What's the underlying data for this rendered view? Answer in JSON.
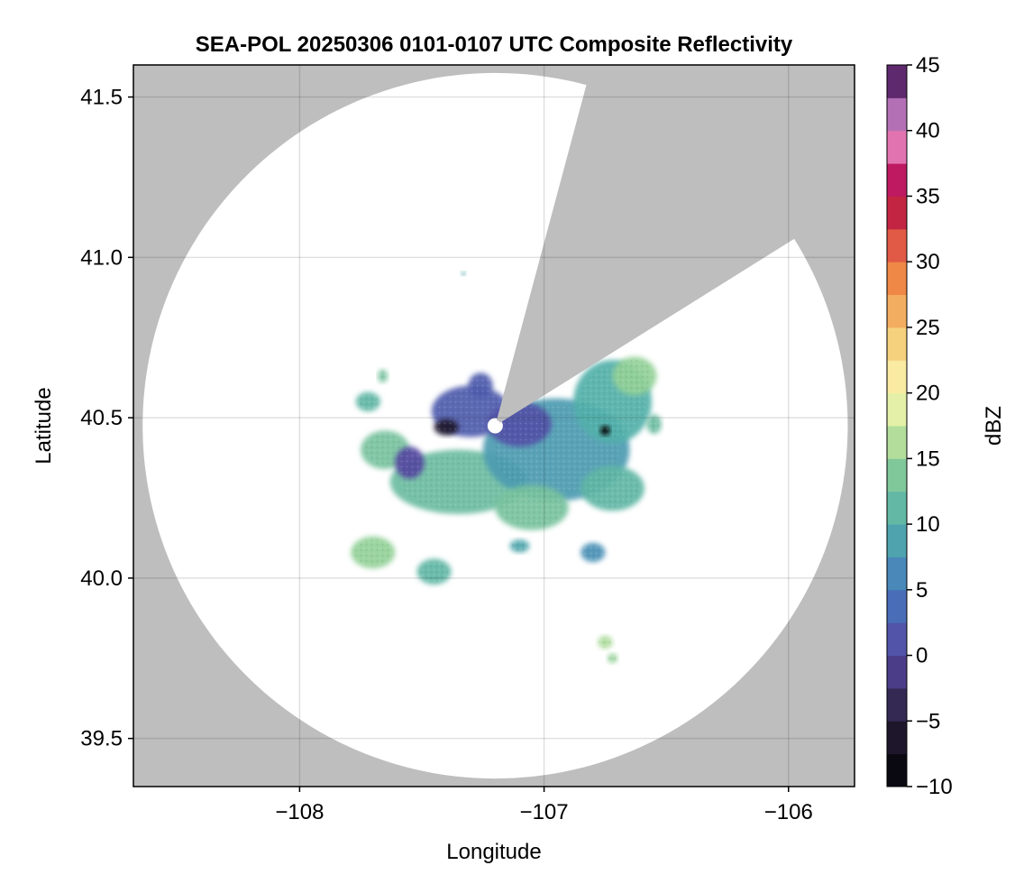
{
  "chart_data": {
    "type": "heatmap",
    "title": "SEA-POL 20250306 0101-0107 UTC Composite Reflectivity",
    "xlabel": "Longitude",
    "ylabel": "Latitude",
    "xlim": [
      -108.68,
      -105.73
    ],
    "ylim": [
      39.35,
      41.6
    ],
    "xticks": [
      -108,
      -107,
      -106
    ],
    "xtick_labels": [
      "−108",
      "−107",
      "−106"
    ],
    "yticks": [
      39.5,
      40.0,
      40.5,
      41.0,
      41.5
    ],
    "ytick_labels": [
      "39.5",
      "40.0",
      "40.5",
      "41.0",
      "41.5"
    ],
    "grid": true,
    "background_color": "#bebebe",
    "coverage_color": "#ffffff",
    "radar": {
      "center_lon": -107.2,
      "center_lat": 40.475,
      "range_lat_deg": 1.1,
      "blocked_sector_deg": [
        15,
        58
      ],
      "inner_blank_radius_lat_deg": 0.03
    },
    "colorbar": {
      "label": "dBZ",
      "range": [
        -10,
        45
      ],
      "step": 2.5,
      "ticks": [
        -10,
        -5,
        0,
        5,
        10,
        15,
        20,
        25,
        30,
        35,
        40,
        45
      ],
      "tick_labels": [
        "−10",
        "−5",
        "0",
        "5",
        "10",
        "15",
        "20",
        "25",
        "30",
        "35",
        "40",
        "45"
      ],
      "colormap": "spectral_r-like"
    },
    "echoes": [
      {
        "lon": -107.35,
        "lat": 40.3,
        "rx": 0.28,
        "ry": 0.1,
        "dbz": 12
      },
      {
        "lon": -106.95,
        "lat": 40.4,
        "rx": 0.3,
        "ry": 0.16,
        "dbz": 8
      },
      {
        "lon": -106.72,
        "lat": 40.55,
        "rx": 0.16,
        "ry": 0.13,
        "dbz": 10
      },
      {
        "lon": -106.63,
        "lat": 40.63,
        "rx": 0.09,
        "ry": 0.06,
        "dbz": 15
      },
      {
        "lon": -107.05,
        "lat": 40.22,
        "rx": 0.15,
        "ry": 0.07,
        "dbz": 13
      },
      {
        "lon": -106.72,
        "lat": 40.28,
        "rx": 0.13,
        "ry": 0.07,
        "dbz": 11
      },
      {
        "lon": -107.65,
        "lat": 40.4,
        "rx": 0.1,
        "ry": 0.06,
        "dbz": 13
      },
      {
        "lon": -107.3,
        "lat": 40.52,
        "rx": 0.16,
        "ry": 0.08,
        "dbz": 2
      },
      {
        "lon": -107.1,
        "lat": 40.48,
        "rx": 0.13,
        "ry": 0.07,
        "dbz": 1
      },
      {
        "lon": -107.55,
        "lat": 40.36,
        "rx": 0.06,
        "ry": 0.05,
        "dbz": 0
      },
      {
        "lon": -107.4,
        "lat": 40.47,
        "rx": 0.05,
        "ry": 0.025,
        "dbz": -6
      },
      {
        "lon": -107.26,
        "lat": 40.6,
        "rx": 0.05,
        "ry": 0.04,
        "dbz": 2
      },
      {
        "lon": -107.72,
        "lat": 40.55,
        "rx": 0.05,
        "ry": 0.03,
        "dbz": 11
      },
      {
        "lon": -107.66,
        "lat": 40.63,
        "rx": 0.02,
        "ry": 0.02,
        "dbz": 13
      },
      {
        "lon": -107.7,
        "lat": 40.08,
        "rx": 0.09,
        "ry": 0.05,
        "dbz": 15
      },
      {
        "lon": -107.45,
        "lat": 40.02,
        "rx": 0.07,
        "ry": 0.04,
        "dbz": 11
      },
      {
        "lon": -106.8,
        "lat": 40.08,
        "rx": 0.05,
        "ry": 0.03,
        "dbz": 7
      },
      {
        "lon": -107.1,
        "lat": 40.1,
        "rx": 0.04,
        "ry": 0.02,
        "dbz": 9
      },
      {
        "lon": -106.75,
        "lat": 39.8,
        "rx": 0.03,
        "ry": 0.02,
        "dbz": 16
      },
      {
        "lon": -106.72,
        "lat": 39.75,
        "rx": 0.02,
        "ry": 0.015,
        "dbz": 15
      },
      {
        "lon": -106.75,
        "lat": 40.46,
        "rx": 0.02,
        "ry": 0.015,
        "dbz": -10
      },
      {
        "lon": -107.33,
        "lat": 40.95,
        "rx": 0.01,
        "ry": 0.006,
        "dbz": 9
      },
      {
        "lon": -106.55,
        "lat": 40.48,
        "rx": 0.03,
        "ry": 0.03,
        "dbz": 12
      }
    ]
  }
}
